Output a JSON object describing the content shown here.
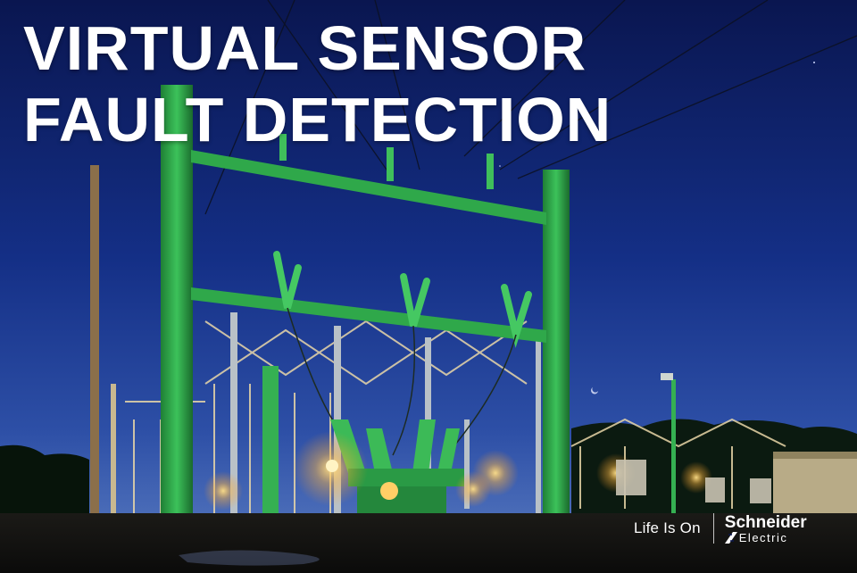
{
  "title": {
    "line1": "VIRTUAL SENSOR",
    "line2": "FAULT DETECTION"
  },
  "branding": {
    "tagline": "Life Is On",
    "company": "Schneider",
    "company_sub": "Electric",
    "icon": "schneider-logo-icon"
  },
  "colors": {
    "sky_top": "#0a1650",
    "sky_horizon": "#3f63b6",
    "steel_green": "#2fa84a",
    "lamp_glow": "#ffc64a",
    "text": "#ffffff"
  }
}
